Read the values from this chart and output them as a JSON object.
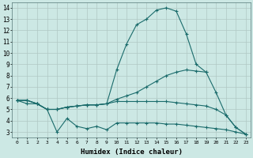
{
  "xlabel": "Humidex (Indice chaleur)",
  "bg_color": "#cce8e4",
  "grid_color": "#b0c8c4",
  "line_color": "#1a6b6b",
  "xlim": [
    -0.5,
    23.5
  ],
  "ylim": [
    2.5,
    14.5
  ],
  "xtick_labels": [
    "0",
    "1",
    "2",
    "3",
    "4",
    "5",
    "6",
    "7",
    "8",
    "9",
    "10",
    "11",
    "12",
    "13",
    "14",
    "15",
    "16",
    "17",
    "18",
    "19",
    "20",
    "21",
    "22",
    "23"
  ],
  "ytick_values": [
    3,
    4,
    5,
    6,
    7,
    8,
    9,
    10,
    11,
    12,
    13,
    14
  ],
  "series": [
    {
      "x": [
        0,
        1,
        2,
        3,
        4,
        5,
        6,
        7,
        8,
        9,
        10,
        11,
        12,
        13,
        14,
        15,
        16,
        17,
        18,
        19,
        20,
        21,
        22,
        23
      ],
      "y": [
        5.8,
        5.8,
        5.5,
        5.0,
        5.0,
        5.2,
        5.3,
        5.4,
        5.4,
        5.5,
        8.5,
        10.8,
        12.5,
        13.0,
        13.8,
        14.0,
        13.7,
        11.7,
        9.0,
        8.3,
        null,
        null,
        null,
        null
      ]
    },
    {
      "x": [
        0,
        1,
        2,
        3,
        4,
        5,
        6,
        7,
        8,
        9,
        10,
        11,
        12,
        13,
        14,
        15,
        16,
        17,
        18,
        19,
        20,
        21,
        22,
        23
      ],
      "y": [
        5.8,
        5.8,
        5.5,
        5.0,
        5.0,
        5.2,
        5.3,
        5.4,
        5.4,
        5.5,
        5.9,
        6.2,
        6.5,
        7.0,
        7.5,
        8.0,
        8.3,
        8.5,
        8.4,
        8.3,
        6.5,
        4.5,
        3.4,
        2.8
      ]
    },
    {
      "x": [
        0,
        1,
        2,
        3,
        4,
        5,
        6,
        7,
        8,
        9,
        10,
        11,
        12,
        13,
        14,
        15,
        16,
        17,
        18,
        19,
        20,
        21,
        22,
        23
      ],
      "y": [
        5.8,
        5.8,
        5.5,
        5.0,
        5.0,
        5.2,
        5.3,
        5.4,
        5.4,
        5.5,
        5.7,
        5.7,
        5.7,
        5.7,
        5.7,
        5.7,
        5.6,
        5.5,
        5.4,
        5.3,
        5.0,
        4.5,
        3.4,
        2.8
      ]
    },
    {
      "x": [
        0,
        1,
        2,
        3,
        4,
        5,
        6,
        7,
        8,
        9,
        10,
        11,
        12,
        13,
        14,
        15,
        16,
        17,
        18,
        19,
        20,
        21,
        22,
        23
      ],
      "y": [
        5.8,
        5.5,
        5.5,
        5.0,
        3.0,
        4.2,
        3.5,
        3.3,
        3.5,
        3.2,
        3.8,
        3.8,
        3.8,
        3.8,
        3.8,
        3.7,
        3.7,
        3.6,
        3.5,
        3.4,
        3.3,
        3.2,
        3.0,
        2.8
      ]
    }
  ]
}
